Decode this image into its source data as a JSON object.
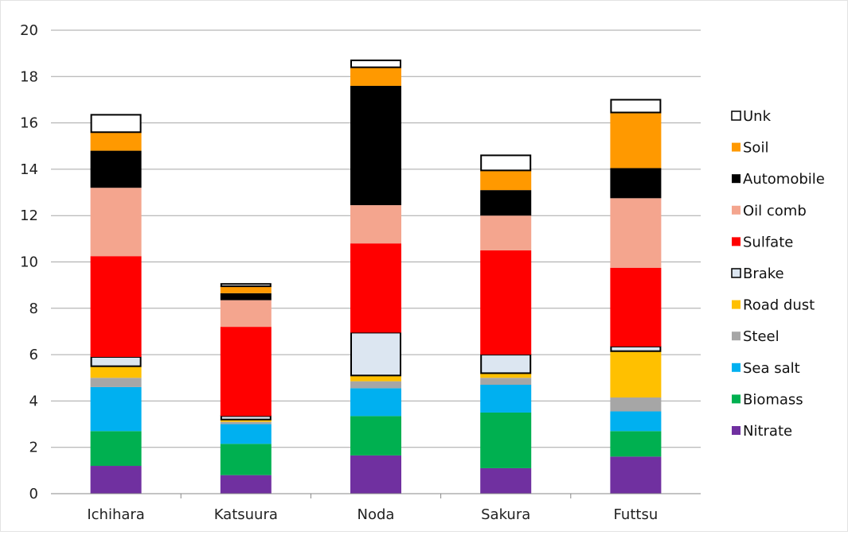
{
  "chart_data": {
    "type": "bar",
    "stacked": true,
    "title": "",
    "xlabel": "",
    "ylabel": "",
    "ylim": [
      0,
      20
    ],
    "yticks": [
      0,
      2,
      4,
      6,
      8,
      10,
      12,
      14,
      16,
      18,
      20
    ],
    "grid": true,
    "legend_position": "right",
    "categories": [
      "Ichihara",
      "Katsuura",
      "Noda",
      "Sakura",
      "Futtsu"
    ],
    "series": [
      {
        "name": "Nitrate",
        "color": "#7030a0",
        "values": [
          1.2,
          0.8,
          1.65,
          1.1,
          1.6
        ]
      },
      {
        "name": "Biomass",
        "color": "#00b050",
        "values": [
          1.5,
          1.35,
          1.7,
          2.4,
          1.1
        ]
      },
      {
        "name": "Sea salt",
        "color": "#00b0f0",
        "values": [
          1.9,
          0.85,
          1.2,
          1.2,
          0.85
        ]
      },
      {
        "name": "Steel",
        "color": "#a6a6a6",
        "values": [
          0.4,
          0.1,
          0.3,
          0.3,
          0.6
        ]
      },
      {
        "name": "Road dust",
        "color": "#ffc000",
        "values": [
          0.5,
          0.1,
          0.25,
          0.2,
          2.0
        ]
      },
      {
        "name": "Brake",
        "color": "#dce6f1",
        "values": [
          0.4,
          0.15,
          1.85,
          0.8,
          0.2
        ]
      },
      {
        "name": "Sulfate",
        "color": "#ff0000",
        "values": [
          4.35,
          3.85,
          3.85,
          4.5,
          3.4
        ]
      },
      {
        "name": "Oil comb",
        "color": "#f4a58e",
        "values": [
          2.95,
          1.15,
          1.65,
          1.5,
          3.0
        ]
      },
      {
        "name": "Automobile",
        "color": "#000000",
        "values": [
          1.6,
          0.3,
          5.15,
          1.1,
          1.3
        ]
      },
      {
        "name": "Soil",
        "color": "#ff9900",
        "values": [
          0.8,
          0.3,
          0.8,
          0.85,
          2.4
        ]
      },
      {
        "name": "Unk",
        "color": "#ffffff",
        "values": [
          0.75,
          0.1,
          0.3,
          0.65,
          0.55
        ]
      }
    ],
    "legend_order": [
      "Unk",
      "Soil",
      "Automobile",
      "Oil comb",
      "Sulfate",
      "Brake",
      "Road dust",
      "Steel",
      "Sea salt",
      "Biomass",
      "Nitrate"
    ]
  }
}
